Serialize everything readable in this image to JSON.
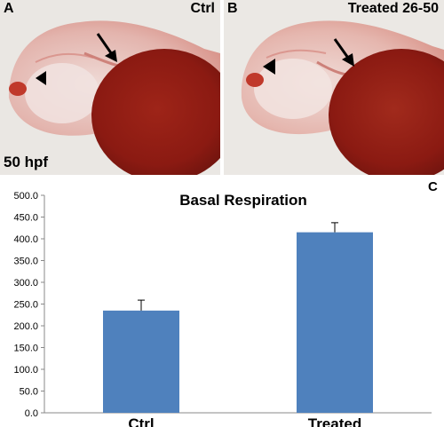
{
  "panels": {
    "a": {
      "letter": "A",
      "label": "Ctrl",
      "stage": "50 hpf"
    },
    "b": {
      "letter": "B",
      "label": "Treated 26-50"
    },
    "c": {
      "letter": "C"
    }
  },
  "colors": {
    "bar": "#4f81bd",
    "tissue_dark": "#8b1a12",
    "tissue_light": "#e9b9b3",
    "background": "#eae7e3"
  },
  "chart_data": {
    "type": "bar",
    "title": "Basal Respiration",
    "categories": [
      "Ctrl",
      "Treated"
    ],
    "values": [
      235.0,
      415.0
    ],
    "errors": [
      24.0,
      22.0
    ],
    "ylim": [
      0,
      500
    ],
    "yticks": [
      "0.0",
      "50.0",
      "100.0",
      "150.0",
      "200.0",
      "250.0",
      "300.0",
      "350.0",
      "400.0",
      "450.0",
      "500.0"
    ],
    "grid": false,
    "xlabel": "",
    "ylabel": ""
  }
}
